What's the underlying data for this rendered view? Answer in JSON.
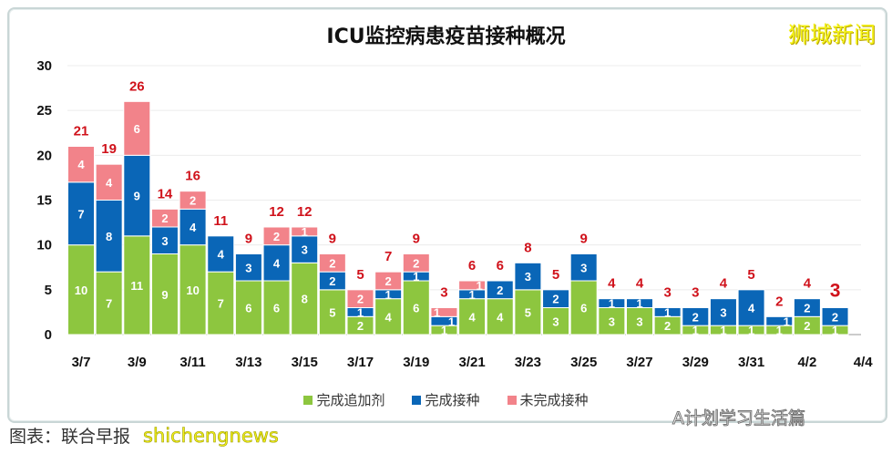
{
  "watermark_logo": "狮城新闻",
  "wechat_watermark": "A计划学习生活篇",
  "source_caption": "图表：联合早报",
  "source_overlay": "shichengnews",
  "chart_data": {
    "type": "bar",
    "stacked": true,
    "title": "ICU监控病患疫苗接种概况",
    "xlabel": "",
    "ylabel": "",
    "ylim": [
      0,
      30
    ],
    "yticks": [
      0,
      5,
      10,
      15,
      20,
      25,
      30
    ],
    "grid": true,
    "legend_position": "bottom",
    "categories": [
      "3/7",
      "3/8",
      "3/9",
      "3/10",
      "3/11",
      "3/12",
      "3/13",
      "3/14",
      "3/15",
      "3/16",
      "3/17",
      "3/18",
      "3/19",
      "3/20",
      "3/21",
      "3/22",
      "3/23",
      "3/24",
      "3/25",
      "3/26",
      "3/27",
      "3/28",
      "3/29",
      "3/30",
      "3/31",
      "4/1",
      "4/2",
      "4/3"
    ],
    "xtick_labels": [
      "3/7",
      "3/9",
      "3/11",
      "3/13",
      "3/15",
      "3/17",
      "3/19",
      "3/21",
      "3/23",
      "3/25",
      "3/27",
      "3/29",
      "3/31",
      "4/2",
      "4/4"
    ],
    "series": [
      {
        "name": "完成追加剂",
        "color": "#8dc63f",
        "values": [
          10,
          7,
          11,
          9,
          10,
          7,
          6,
          6,
          8,
          5,
          2,
          4,
          6,
          1,
          4,
          4,
          5,
          3,
          6,
          3,
          3,
          2,
          1,
          1,
          1,
          1,
          2,
          1
        ]
      },
      {
        "name": "完成接种",
        "color": "#0a66b7",
        "values": [
          7,
          8,
          9,
          3,
          4,
          4,
          3,
          4,
          3,
          2,
          1,
          1,
          1,
          1,
          1,
          2,
          3,
          2,
          3,
          1,
          1,
          1,
          2,
          3,
          4,
          1,
          2,
          2
        ]
      },
      {
        "name": "未完成接种",
        "color": "#f2838a",
        "values": [
          4,
          4,
          6,
          2,
          2,
          0,
          0,
          2,
          1,
          2,
          2,
          2,
          2,
          1,
          1,
          0,
          0,
          0,
          0,
          0,
          0,
          0,
          0,
          0,
          0,
          0,
          0,
          0
        ]
      }
    ],
    "totals": [
      21,
      19,
      26,
      14,
      16,
      11,
      9,
      12,
      12,
      9,
      5,
      7,
      9,
      3,
      6,
      6,
      8,
      5,
      9,
      4,
      4,
      3,
      3,
      4,
      5,
      2,
      4,
      3
    ]
  }
}
